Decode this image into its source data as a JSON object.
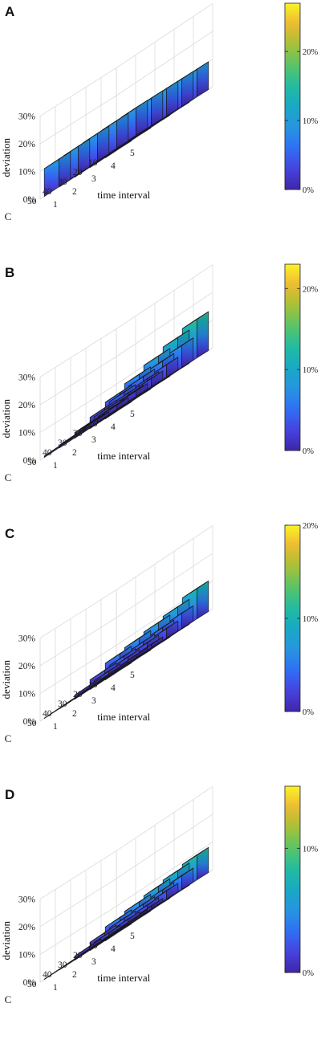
{
  "shared": {
    "xlabel": "time interval",
    "ylabel": "C",
    "zlabel": "deviation",
    "x_ticks": [
      "1",
      "2",
      "3",
      "4",
      "5"
    ],
    "y_ticks": [
      "10",
      "20",
      "30",
      "40",
      "50"
    ],
    "z_ticks": [
      "0%",
      "10%",
      "20%",
      "30%"
    ],
    "colormap": [
      "#3e26a8",
      "#4743e0",
      "#2f6ff5",
      "#2895e0",
      "#17a9c5",
      "#23bba0",
      "#58c468",
      "#a6c136",
      "#ecb932",
      "#fcf325"
    ]
  },
  "chart_data": [
    {
      "panel": "A",
      "type": "bar3d",
      "x": [
        1,
        2,
        3,
        4,
        5
      ],
      "y": [
        10,
        20,
        30,
        40,
        50
      ],
      "zlim": [
        0,
        30
      ],
      "colorbar": {
        "ticks": [
          "0%",
          "10%",
          "20%"
        ],
        "max": 27
      },
      "values": [
        [
          10,
          10,
          10,
          10,
          10
        ],
        [
          10,
          10,
          10,
          10,
          10
        ],
        [
          10,
          10,
          10,
          10,
          10
        ],
        [
          10,
          10,
          10,
          10,
          10
        ],
        [
          10,
          10,
          10,
          10,
          10
        ]
      ]
    },
    {
      "panel": "B",
      "type": "bar3d",
      "x": [
        1,
        2,
        3,
        4,
        5
      ],
      "y": [
        10,
        20,
        30,
        40,
        50
      ],
      "zlim": [
        0,
        30
      ],
      "colorbar": {
        "ticks": [
          "0%",
          "10%",
          "20%"
        ],
        "max": 23
      },
      "values": [
        [
          6,
          8,
          10,
          12,
          14
        ],
        [
          4,
          5,
          6,
          7,
          8
        ],
        [
          2,
          3,
          3.5,
          4,
          4.5
        ],
        [
          1,
          1.5,
          2,
          2.5,
          3
        ],
        [
          0.5,
          0.5,
          1,
          1.5,
          2
        ]
      ]
    },
    {
      "panel": "C",
      "type": "bar3d",
      "x": [
        1,
        2,
        3,
        4,
        5
      ],
      "y": [
        10,
        20,
        30,
        40,
        50
      ],
      "zlim": [
        0,
        30
      ],
      "colorbar": {
        "ticks": [
          "0%",
          "10%",
          "20%"
        ],
        "max": 20
      },
      "values": [
        [
          6,
          7,
          8,
          9,
          11
        ],
        [
          3.5,
          4,
          4.5,
          5,
          5.5
        ],
        [
          1.5,
          2,
          2.5,
          3,
          3.5
        ],
        [
          0.3,
          0.4,
          0.6,
          0.8,
          1.2
        ],
        [
          0.1,
          0.1,
          0.3,
          0.5,
          0.8
        ]
      ]
    },
    {
      "panel": "D",
      "type": "bar3d",
      "x": [
        1,
        2,
        3,
        4,
        5
      ],
      "y": [
        10,
        20,
        30,
        40,
        50
      ],
      "zlim": [
        0,
        30
      ],
      "colorbar": {
        "ticks": [
          "0%",
          "10%"
        ],
        "max": 15
      },
      "values": [
        [
          5,
          6,
          7,
          8,
          9
        ],
        [
          3,
          3.5,
          4,
          4.5,
          5
        ],
        [
          1.5,
          1.8,
          2,
          2.5,
          3
        ],
        [
          0.1,
          0.2,
          0.3,
          0.6,
          1
        ],
        [
          0.1,
          0.1,
          0.2,
          0.3,
          0.5
        ]
      ]
    }
  ]
}
